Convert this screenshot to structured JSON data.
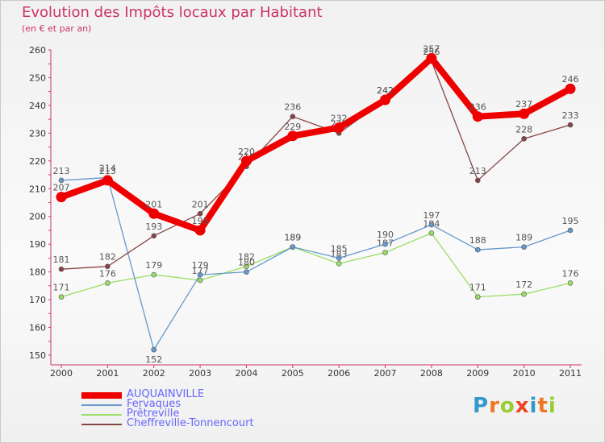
{
  "title": "Evolution des Impôts locaux par Habitant",
  "subtitle": "(en € et par an)",
  "logo_text": "Proxiti",
  "chart_data": {
    "type": "line",
    "categories": [
      "2000",
      "2001",
      "2002",
      "2003",
      "2004",
      "2005",
      "2006",
      "2007",
      "2008",
      "2009",
      "2010",
      "2011"
    ],
    "ylim": [
      150,
      260
    ],
    "yticks": [
      150,
      160,
      170,
      180,
      190,
      200,
      210,
      220,
      230,
      240,
      250,
      260
    ],
    "grid": false,
    "legend_position": "bottom-left",
    "series": [
      {
        "name": "Prêtreville",
        "color": "#99dd66",
        "values": [
          171,
          176,
          179,
          177,
          182,
          189,
          183,
          187,
          194,
          171,
          172,
          176
        ]
      },
      {
        "name": "Fervaques",
        "color": "#6699cc",
        "values": [
          213,
          214,
          152,
          179,
          180,
          189,
          185,
          190,
          197,
          188,
          189,
          195
        ]
      },
      {
        "name": "Cheffreville-Tonnencourt",
        "color": "#884444",
        "values": [
          181,
          182,
          193,
          201,
          218,
          236,
          230,
          242,
          256,
          213,
          228,
          233
        ]
      },
      {
        "name": "AUQUAINVILLE",
        "color": "#ee0000",
        "values": [
          207,
          213,
          201,
          195,
          220,
          229,
          232,
          242,
          257,
          236,
          237,
          246
        ]
      }
    ]
  },
  "legend": [
    {
      "name": "AUQUAINVILLE",
      "color": "#ee0000",
      "text_color": "#6666ff"
    },
    {
      "name": "Fervaques",
      "color": "#6699cc",
      "text_color": "#6666ff"
    },
    {
      "name": "Prêtreville",
      "color": "#99dd66",
      "text_color": "#6666ff"
    },
    {
      "name": "Cheffreville-Tonnencourt",
      "color": "#884444",
      "text_color": "#6666ff"
    }
  ]
}
